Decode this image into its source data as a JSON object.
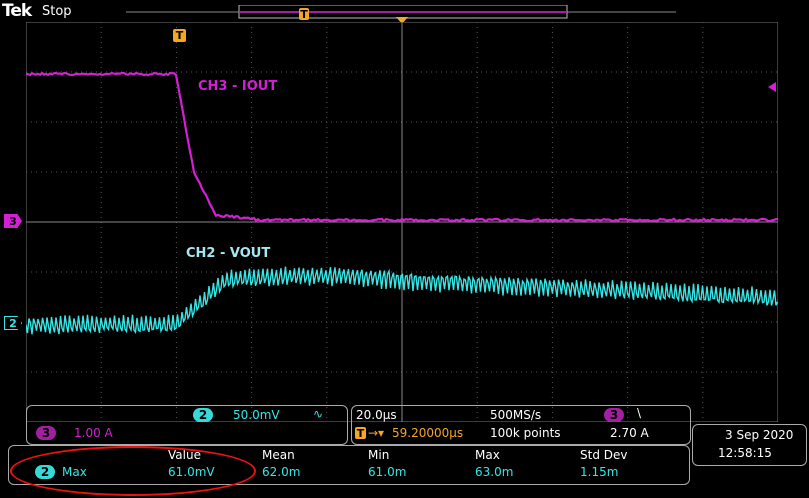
{
  "header": {
    "brand": "Tek",
    "acq_state": "Stop",
    "trigger_marker": "T"
  },
  "channels": {
    "ch3": {
      "marker": "3",
      "label": "CH3 - IOUT",
      "color": "#d41fd4"
    },
    "ch2": {
      "marker": "2",
      "label": "CH2 - VOUT",
      "color": "#36e6e6"
    }
  },
  "settings": {
    "ch2_badge": "2",
    "ch2_scale": "50.0mV",
    "ch2_bw_symbol": "∿",
    "ch3_badge": "3",
    "ch3_scale": "1.00 A"
  },
  "timebase": {
    "time_div": "20.0µs",
    "sample_rate": "500MS/s",
    "trigger_badge": "T",
    "trigger_arrow": "→▾",
    "trigger_position": "59.20000µs",
    "record_length": "100k points",
    "trigger_source_badge": "3",
    "trigger_slope": "\\",
    "trigger_level": "2.70 A"
  },
  "datetime": {
    "date": "3 Sep  2020",
    "time": "12:58:15"
  },
  "measurement": {
    "headers": {
      "value": "Value",
      "mean": "Mean",
      "min": "Min",
      "max": "Max",
      "std_dev": "Std Dev"
    },
    "source_badge": "2",
    "name": "Max",
    "value": "61.0mV",
    "mean": "62.0m",
    "min": "61.0m",
    "max": "63.0m",
    "std_dev": "1.15m"
  },
  "colors": {
    "ch2": "#36e6e6",
    "ch3": "#d41fd4",
    "trigger": "#f5a623",
    "annotation": "#e11111"
  }
}
